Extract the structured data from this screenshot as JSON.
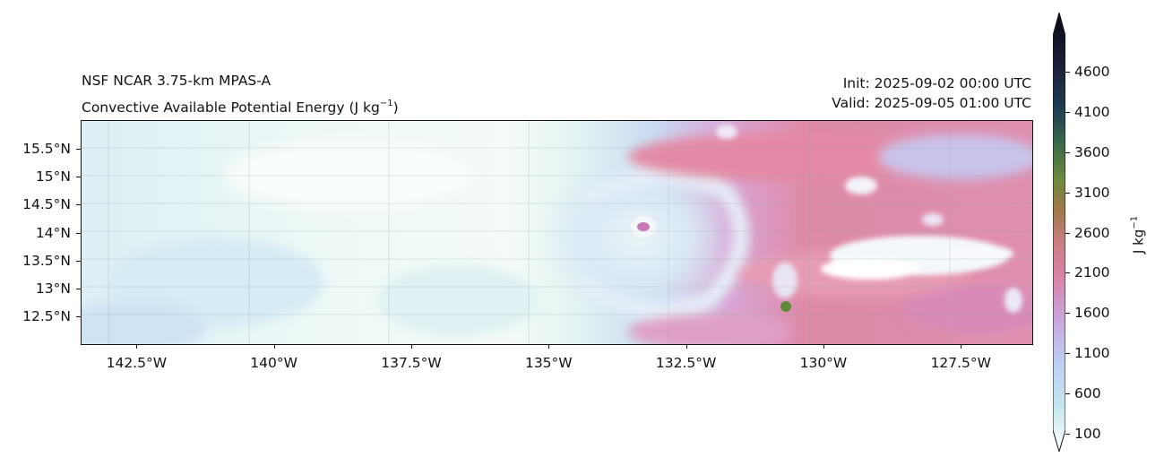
{
  "title": {
    "model": "NSF NCAR 3.75-km MPAS-A",
    "field": "Convective Available Potential Energy (J kg",
    "field_exp": "−1",
    "field_close": ")",
    "init": "Init: 2025-09-02 00:00 UTC",
    "valid": "Valid: 2025-09-05 01:00 UTC"
  },
  "map": {
    "lat_labels": [
      "15.5°N",
      "15°N",
      "14.5°N",
      "14°N",
      "13.5°N",
      "13°N",
      "12.5°N"
    ],
    "lon_labels": [
      "142.5°W",
      "140°W",
      "137.5°W",
      "135°W",
      "132.5°W",
      "130°W",
      "127.5°W"
    ],
    "lat_values": [
      15.5,
      15.0,
      14.5,
      14.0,
      13.5,
      13.0,
      12.5
    ],
    "lon_values": [
      -142.5,
      -140.0,
      -137.5,
      -135.0,
      -132.5,
      -130.0,
      -127.5
    ],
    "extent": {
      "lon_min": -143.5,
      "lon_max": -126.2,
      "lat_min": 12.0,
      "lat_max": 16.0
    },
    "hurricane_center": {
      "lon": -133.0,
      "lat": 14.1
    }
  },
  "colorbar": {
    "ticks": [
      "4600",
      "4100",
      "3600",
      "3100",
      "2600",
      "2100",
      "1600",
      "1100",
      "600",
      "100"
    ],
    "tick_values": [
      4600,
      4100,
      3600,
      3100,
      2600,
      2100,
      1600,
      1100,
      600,
      100
    ],
    "min": 100,
    "max": 5000,
    "units": "J kg",
    "units_exp": "−1",
    "colors": [
      "#ffffff",
      "#c6e6ee",
      "#bcd0f3",
      "#c9a6dc",
      "#d882a7",
      "#c97d80",
      "#a0784a",
      "#6d8a3c",
      "#3a6a4a",
      "#1f3d52",
      "#1c1f3a",
      "#0a0a12"
    ]
  }
}
